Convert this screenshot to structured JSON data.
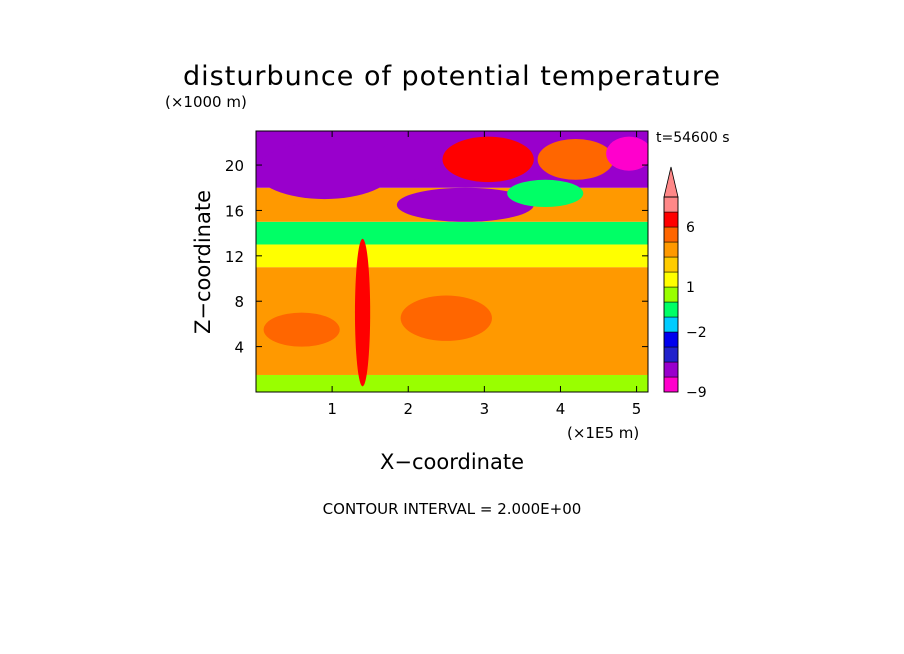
{
  "chart_data": {
    "type": "heatmap",
    "title": "disturbunce of potential temperature",
    "xlabel": "X−coordinate",
    "ylabel": "Z−coordinate",
    "x_unit": "(×1E5 m)",
    "y_unit": "(×1000 m)",
    "time_label": "t=54600 s",
    "footer": "CONTOUR INTERVAL = 2.000E+00",
    "xlim": [
      0,
      5.15
    ],
    "ylim": [
      0,
      23
    ],
    "x_ticks": [
      "1",
      "2",
      "3",
      "4",
      "5"
    ],
    "y_ticks": [
      "4",
      "8",
      "12",
      "16",
      "20"
    ],
    "colorbar": {
      "tick_labels": [
        "6",
        "1",
        "−2",
        "−9"
      ],
      "levels": [
        -9,
        -7,
        -5,
        -3,
        -2,
        -1,
        0,
        1,
        2,
        3,
        4,
        6,
        8
      ],
      "colors": [
        "#ff00cc",
        "#9900cc",
        "#2222cc",
        "#0000ee",
        "#00ccff",
        "#00ff66",
        "#99ff00",
        "#ffff00",
        "#ffcc00",
        "#ff9900",
        "#ff6600",
        "#ff0000",
        "#ff8888"
      ]
    },
    "regions": [
      {
        "zmin": 0,
        "zmax": 1.5,
        "value": 0.5
      },
      {
        "zmin": 1.5,
        "zmax": 11,
        "value": 3
      },
      {
        "zmin": 11,
        "zmax": 13,
        "value": 1
      },
      {
        "zmin": 13,
        "zmax": 15,
        "value": -1
      },
      {
        "zmin": 15,
        "zmax": 18,
        "value": 3
      },
      {
        "zmin": 18,
        "zmax": 23,
        "value": -7
      }
    ],
    "blobs": [
      {
        "x": 0.9,
        "z": 19.5,
        "rx": 0.9,
        "rz": 2.5,
        "value": -7
      },
      {
        "x": 2.0,
        "z": 20.5,
        "rx": 0.4,
        "rz": 1.8,
        "value": -7
      },
      {
        "x": 2.75,
        "z": 16.5,
        "rx": 0.9,
        "rz": 1.5,
        "value": -7
      },
      {
        "x": 3.05,
        "z": 20.5,
        "rx": 0.6,
        "rz": 2.0,
        "value": 6
      },
      {
        "x": 4.2,
        "z": 20.5,
        "rx": 0.5,
        "rz": 1.8,
        "value": 4
      },
      {
        "x": 4.9,
        "z": 21,
        "rx": 0.3,
        "rz": 1.5,
        "value": -9
      },
      {
        "x": 3.8,
        "z": 17.5,
        "rx": 0.5,
        "rz": 1.2,
        "value": -1
      },
      {
        "x": 0.6,
        "z": 5.5,
        "rx": 0.5,
        "rz": 1.5,
        "value": 4
      },
      {
        "x": 2.5,
        "z": 6.5,
        "rx": 0.6,
        "rz": 2.0,
        "value": 4
      },
      {
        "x": 1.4,
        "z": 7,
        "rx": 0.1,
        "rz": 6.5,
        "value": 6
      }
    ]
  }
}
